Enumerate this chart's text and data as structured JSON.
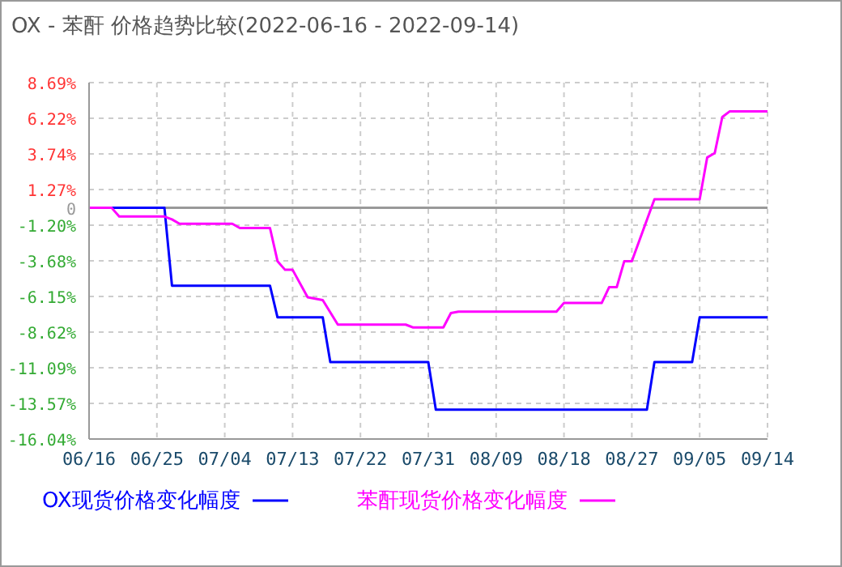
{
  "chart_data": {
    "type": "line",
    "title": "OX - 苯酐 价格趋势比较(2022-06-16 - 2022-09-14)",
    "series": [
      {
        "name": "OX现货价格变化幅度",
        "color": "#0000ff",
        "x": [
          "2022-06-16",
          "2022-06-26",
          "2022-06-27",
          "2022-07-10",
          "2022-07-11",
          "2022-07-17",
          "2022-07-18",
          "2022-07-31",
          "2022-08-01",
          "2022-08-29",
          "2022-08-30",
          "2022-09-04",
          "2022-09-05",
          "2022-09-14"
        ],
        "values": [
          0,
          0,
          -5.4,
          -5.4,
          -7.6,
          -7.6,
          -10.7,
          -10.7,
          -14,
          -14,
          -10.7,
          -10.7,
          -7.6,
          -7.6
        ]
      },
      {
        "name": "苯酐现货价格变化幅度",
        "color": "#ff00ff",
        "x": [
          "2022-06-16",
          "2022-06-19",
          "2022-06-20",
          "2022-06-26",
          "2022-06-27",
          "2022-06-28",
          "2022-07-05",
          "2022-07-06",
          "2022-07-10",
          "2022-07-11",
          "2022-07-12",
          "2022-07-13",
          "2022-07-15",
          "2022-07-17",
          "2022-07-19",
          "2022-07-28",
          "2022-07-29",
          "2022-08-02",
          "2022-08-03",
          "2022-08-04",
          "2022-08-17",
          "2022-08-18",
          "2022-08-23",
          "2022-08-24",
          "2022-08-25",
          "2022-08-26",
          "2022-08-27",
          "2022-08-30",
          "2022-09-05",
          "2022-09-06",
          "2022-09-07",
          "2022-09-08",
          "2022-09-09",
          "2022-09-14"
        ],
        "values": [
          0,
          0,
          -0.6,
          -0.6,
          -0.8,
          -1.1,
          -1.1,
          -1.4,
          -1.4,
          -3.7,
          -4.3,
          -4.3,
          -6.2,
          -6.4,
          -8.1,
          -8.1,
          -8.3,
          -8.3,
          -7.3,
          -7.2,
          -7.2,
          -6.6,
          -6.6,
          -5.5,
          -5.5,
          -3.7,
          -3.7,
          0.6,
          0.6,
          3.5,
          3.8,
          6.3,
          6.7,
          6.7
        ]
      }
    ],
    "xlim": [
      "2022-06-16",
      "2022-09-14"
    ],
    "xticks": [
      {
        "value": "2022-06-16",
        "label": "06/16"
      },
      {
        "value": "2022-06-25",
        "label": "06/25"
      },
      {
        "value": "2022-07-04",
        "label": "07/04"
      },
      {
        "value": "2022-07-13",
        "label": "07/13"
      },
      {
        "value": "2022-07-22",
        "label": "07/22"
      },
      {
        "value": "2022-07-31",
        "label": "07/31"
      },
      {
        "value": "2022-08-09",
        "label": "08/09"
      },
      {
        "value": "2022-08-18",
        "label": "08/18"
      },
      {
        "value": "2022-08-27",
        "label": "08/27"
      },
      {
        "value": "2022-09-05",
        "label": "09/05"
      },
      {
        "value": "2022-09-14",
        "label": "09/14"
      }
    ],
    "ylim": [
      -16.04,
      8.69
    ],
    "yticks": [
      {
        "value": -16.04,
        "label": "-16.04%"
      },
      {
        "value": -13.57,
        "label": "-13.57%"
      },
      {
        "value": -11.09,
        "label": "-11.09%"
      },
      {
        "value": -8.62,
        "label": "-8.62%"
      },
      {
        "value": -6.15,
        "label": "-6.15%"
      },
      {
        "value": -3.68,
        "label": "-3.68%"
      },
      {
        "value": -1.2,
        "label": "-1.20%"
      },
      0,
      {
        "value": 1.27,
        "label": "1.27%"
      },
      {
        "value": 3.74,
        "label": "3.74%"
      },
      {
        "value": 6.22,
        "label": "6.22%"
      },
      {
        "value": 8.69,
        "label": "8.69%"
      }
    ],
    "ref_lines": [
      {
        "axis": "y",
        "value": 0,
        "color": "#999999"
      }
    ],
    "grid": true,
    "legend": "bottom",
    "marker": "none",
    "line_style": "solid"
  }
}
